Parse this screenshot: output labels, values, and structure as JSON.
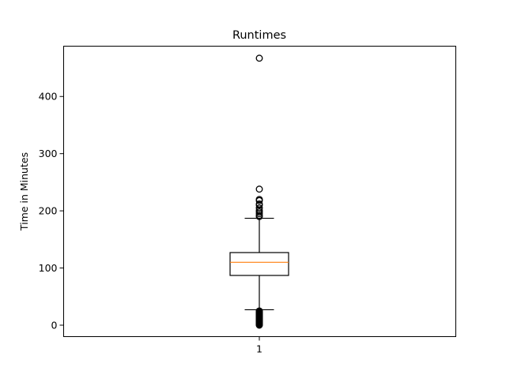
{
  "chart_data": {
    "type": "box",
    "title": "Runtimes",
    "xlabel": "",
    "ylabel": "Time in Minutes",
    "categories": [
      "1"
    ],
    "ylim": [
      -20,
      488
    ],
    "y_ticks": [
      0,
      100,
      200,
      300,
      400
    ],
    "grid": false,
    "legend": "none",
    "box": {
      "whisker_low": 27,
      "q1": 87,
      "median": 110,
      "q3": 127,
      "whisker_high": 187,
      "outliers": [
        0,
        1,
        2,
        3,
        4,
        5,
        6,
        7,
        8,
        9,
        10,
        11,
        12,
        13,
        14,
        15,
        16,
        17,
        18,
        19,
        20,
        21,
        22,
        23,
        24,
        25,
        190,
        192,
        195,
        198,
        201,
        205,
        210,
        212,
        218,
        220,
        238,
        467
      ]
    },
    "colors": {
      "box": "#000000",
      "median": "#ff7f0e",
      "outlier_edge": "#000000"
    }
  }
}
